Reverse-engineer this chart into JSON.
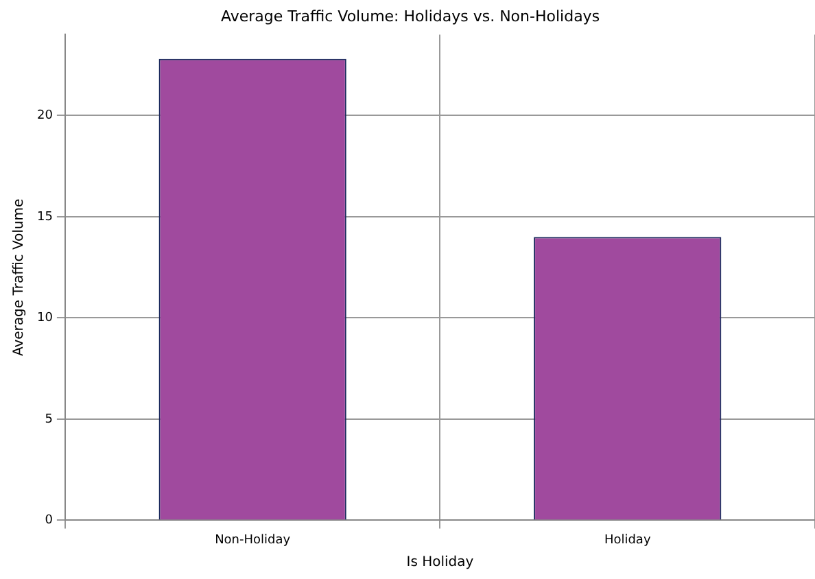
{
  "chart_data": {
    "type": "bar",
    "title": "Average Traffic Volume: Holidays vs. Non-Holidays",
    "xlabel": "Is Holiday",
    "ylabel": "Average Traffic Volume",
    "categories": [
      "Non-Holiday",
      "Holiday"
    ],
    "values": [
      22.8,
      14.0
    ],
    "color": "#a04a9e",
    "ylim": [
      0,
      24
    ],
    "yticks": [
      0,
      5,
      10,
      15,
      20
    ],
    "grid": true
  }
}
